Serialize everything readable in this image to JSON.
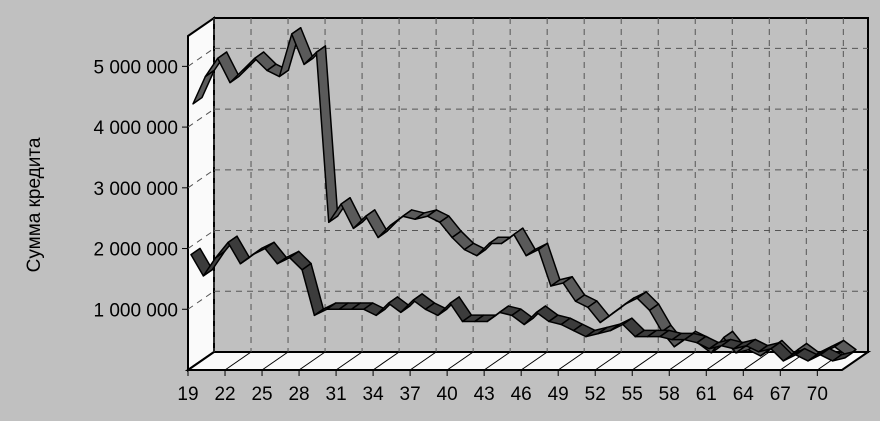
{
  "chart_data": {
    "type": "line",
    "style": "3d-ribbon",
    "ylabel": "Сумма кредита",
    "xlabel": "",
    "x_tick_labels": [
      "19",
      "22",
      "25",
      "28",
      "31",
      "34",
      "37",
      "40",
      "43",
      "46",
      "49",
      "52",
      "55",
      "58",
      "61",
      "64",
      "67",
      "70"
    ],
    "y_tick_labels": [
      "1 000 000",
      "2 000 000",
      "3 000 000",
      "4 000 000",
      "5 000 000"
    ],
    "y_tick_values": [
      1000000,
      2000000,
      3000000,
      4000000,
      5000000
    ],
    "xlim": [
      19,
      72
    ],
    "ylim": [
      0,
      5500000
    ],
    "grid": true,
    "x": [
      19,
      20,
      21,
      22,
      23,
      24,
      25,
      26,
      27,
      28,
      29,
      30,
      31,
      32,
      33,
      34,
      35,
      36,
      37,
      38,
      39,
      40,
      41,
      42,
      43,
      44,
      45,
      46,
      47,
      48,
      49,
      50,
      51,
      52,
      53,
      54,
      55,
      56,
      57,
      58,
      59,
      60,
      61,
      62,
      63,
      64,
      65,
      66,
      67,
      68,
      69,
      70,
      71,
      72
    ],
    "series": [
      {
        "color": "#5a5a5a",
        "values": [
          4300000,
          4750000,
          5050000,
          4650000,
          4850000,
          5050000,
          4850000,
          4750000,
          5450000,
          4950000,
          5150000,
          2350000,
          2650000,
          2250000,
          2450000,
          2100000,
          2300000,
          2450000,
          2400000,
          2450000,
          2350000,
          2100000,
          1900000,
          1800000,
          2000000,
          2000000,
          2150000,
          1800000,
          1900000,
          1300000,
          1350000,
          1050000,
          950000,
          700000,
          850000,
          1000000,
          1100000,
          900000,
          550000,
          300000,
          450000,
          350000,
          200000,
          450000,
          200000,
          250000,
          150000,
          300000,
          100000,
          250000,
          100000,
          200000,
          300000,
          150000
        ]
      },
      {
        "color": "#3c3c3c",
        "values": [
          1850000,
          1500000,
          1800000,
          2050000,
          1700000,
          1850000,
          1950000,
          1700000,
          1800000,
          1600000,
          850000,
          950000,
          950000,
          950000,
          950000,
          850000,
          1050000,
          900000,
          1100000,
          950000,
          850000,
          1050000,
          750000,
          750000,
          750000,
          900000,
          850000,
          700000,
          900000,
          750000,
          700000,
          600000,
          500000,
          550000,
          600000,
          700000,
          500000,
          500000,
          500000,
          450000,
          450000,
          400000,
          300000,
          350000,
          300000,
          350000,
          250000,
          300000,
          100000,
          200000,
          100000,
          200000,
          100000,
          150000
        ]
      }
    ]
  }
}
